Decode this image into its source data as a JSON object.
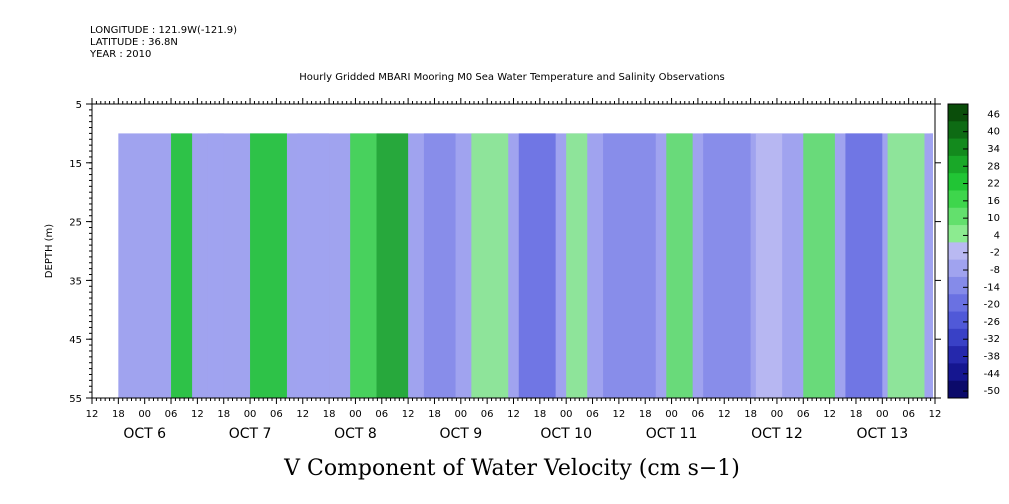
{
  "meta": {
    "longitude": "LONGITUDE : 121.9W(-121.9)",
    "latitude": "LATITUDE : 36.8N",
    "year": "YEAR : 2010"
  },
  "chart_data": {
    "type": "heatmap",
    "title": "Hourly Gridded MBARI Mooring M0 Sea Water Temperature and Salinity Observations",
    "xlabel": "V Component of Water Velocity (cm s−1)",
    "ylabel": "DEPTH (m)",
    "y_ticks": [
      "5",
      "15",
      "25",
      "35",
      "45",
      "55"
    ],
    "ylim": [
      55,
      5
    ],
    "data_depth_range": [
      10,
      55
    ],
    "x_hour_ticks": [
      "12",
      "18",
      "00",
      "06",
      "12",
      "18",
      "00",
      "06",
      "12",
      "18",
      "00",
      "06",
      "12",
      "18",
      "00",
      "06",
      "12",
      "18",
      "00",
      "06",
      "12",
      "18",
      "00",
      "06",
      "12",
      "18",
      "00",
      "06",
      "12",
      "18",
      "00",
      "06",
      "12"
    ],
    "date_labels": [
      "OCT  6",
      "OCT  7",
      "OCT  8",
      "OCT  9",
      "OCT 10",
      "OCT 11",
      "OCT 12",
      "OCT 13"
    ],
    "time_range": [
      "2010-10-05T12:00",
      "2010-10-13T12:00"
    ],
    "data_time_start": "2010-10-05T18:00",
    "colorbar": {
      "labels": [
        "46",
        "40",
        "34",
        "28",
        "22",
        "16",
        "10",
        "4",
        "-2",
        "-8",
        "-14",
        "-20",
        "-26",
        "-32",
        "-38",
        "-44",
        "-50"
      ],
      "colors": [
        "#0a4d0a",
        "#0e6b14",
        "#138a1d",
        "#19a828",
        "#21c535",
        "#3ed64c",
        "#63e06d",
        "#8ceb90",
        "#b9b9f2",
        "#a0a3ef",
        "#858be9",
        "#6a71e2",
        "#5059d8",
        "#3941c6",
        "#2528ac",
        "#151690",
        "#0b0a6a"
      ]
    },
    "vertical_bands": [
      {
        "day_offset": 0.25,
        "width": 0.2,
        "value": 22
      },
      {
        "day_offset": 0.6,
        "width": 0.15,
        "value": -8
      },
      {
        "day_offset": 1.0,
        "width": 0.35,
        "value": 20
      },
      {
        "day_offset": 1.45,
        "width": 0.3,
        "value": -10
      },
      {
        "day_offset": 1.95,
        "width": 0.25,
        "value": 18
      },
      {
        "day_offset": 2.2,
        "width": 0.3,
        "value": 26
      },
      {
        "day_offset": 2.65,
        "width": 0.3,
        "value": -12
      },
      {
        "day_offset": 3.1,
        "width": 0.35,
        "value": 4
      },
      {
        "day_offset": 3.55,
        "width": 0.35,
        "value": -18
      },
      {
        "day_offset": 4.0,
        "width": 0.2,
        "value": 6
      },
      {
        "day_offset": 4.35,
        "width": 0.5,
        "value": -14
      },
      {
        "day_offset": 4.95,
        "width": 0.25,
        "value": 8
      },
      {
        "day_offset": 5.3,
        "width": 0.45,
        "value": -12
      },
      {
        "day_offset": 5.8,
        "width": 0.25,
        "value": -4
      },
      {
        "day_offset": 6.25,
        "width": 0.3,
        "value": 10
      },
      {
        "day_offset": 6.65,
        "width": 0.35,
        "value": -20
      },
      {
        "day_offset": 7.05,
        "width": 0.35,
        "value": 6
      },
      {
        "day_offset": 7.45,
        "width": 0.35,
        "value": -8
      },
      {
        "day_offset": 7.9,
        "width": 0.1,
        "value": 4
      }
    ]
  }
}
